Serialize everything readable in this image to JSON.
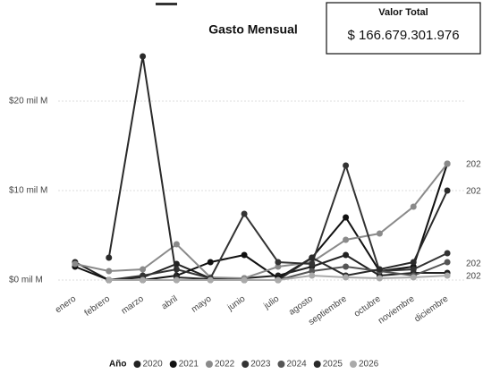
{
  "chart_data": {
    "type": "line",
    "title": "Gasto Mensual",
    "card": {
      "title": "Valor Total",
      "value": "$ 166.679.301.976"
    },
    "categories": [
      "enero",
      "febrero",
      "marzo",
      "abril",
      "mayo",
      "junio",
      "julio",
      "agosto",
      "septiembre",
      "octubre",
      "noviembre",
      "diciembre"
    ],
    "legend_title": "Año",
    "series": [
      {
        "name": "2020",
        "color": "#222222",
        "values": [
          2,
          0,
          0.3,
          1.8,
          0.2,
          0.2,
          0.5,
          1.5,
          2.8,
          0.5,
          0.8,
          0.8
        ]
      },
      {
        "name": "2021",
        "color": "#111111",
        "values": [
          1.5,
          0,
          0,
          0.5,
          2,
          2.8,
          0.2,
          2.5,
          7,
          1,
          1.5,
          13
        ]
      },
      {
        "name": "2022",
        "color": "#8a8a8a",
        "values": [
          1.8,
          1,
          1.2,
          4,
          0.3,
          0.2,
          1.5,
          2,
          4.5,
          5.2,
          8.2,
          13
        ]
      },
      {
        "name": "2023",
        "color": "#333333",
        "values": [
          null,
          0,
          0.5,
          1.2,
          0.2,
          7.4,
          2,
          1.8,
          12.8,
          1,
          1.2,
          3
        ]
      },
      {
        "name": "2024",
        "color": "#555555",
        "values": [
          null,
          0,
          0,
          0,
          0,
          0,
          0,
          1,
          1.5,
          1,
          0.5,
          2
        ]
      },
      {
        "name": "2025",
        "color": "#2a2a2a",
        "values": [
          null,
          2.5,
          25,
          0.3,
          0.1,
          0,
          0,
          2.5,
          0.5,
          1.2,
          2,
          10
        ]
      },
      {
        "name": "2026",
        "color": "#aaaaaa",
        "values": [
          null,
          0,
          0,
          0,
          0,
          0,
          0,
          0.5,
          0.3,
          0.2,
          0.3,
          0.5
        ]
      }
    ],
    "end_labels": [
      "202",
      "202",
      "202",
      "202"
    ],
    "ylim": [
      -1,
      26
    ],
    "yticks": [
      {
        "value": 0,
        "label": "$0 mil M"
      },
      {
        "value": 10,
        "label": "$10 mil M"
      },
      {
        "value": 20,
        "label": "$20 mil M"
      }
    ],
    "grid": true
  }
}
